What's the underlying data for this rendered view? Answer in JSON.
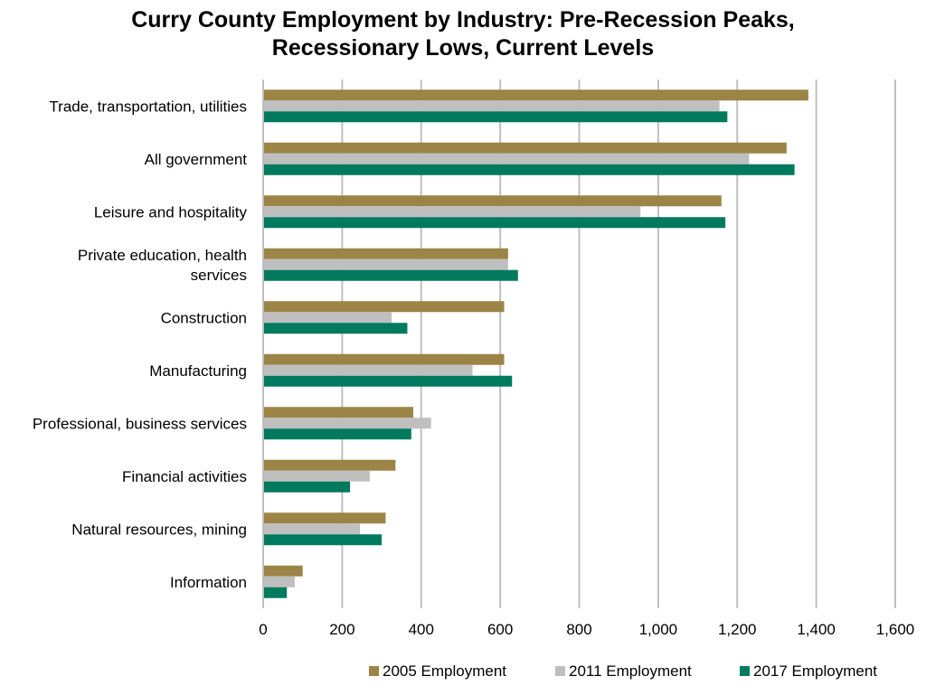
{
  "chart_data": {
    "type": "bar",
    "orientation": "horizontal",
    "title": "Curry County Employment by Industry: Pre-Recession Peaks, Recessionary Lows, Current Levels",
    "title_lines": [
      "Curry County Employment by Industry: Pre-Recession Peaks,",
      "Recessionary Lows, Current Levels"
    ],
    "categories": [
      "Trade, transportation, utilities",
      "All government",
      "Leisure and hospitality",
      "Private education, health services",
      "Construction",
      "Manufacturing",
      "Professional, business services",
      "Financial activities",
      "Natural resources, mining",
      "Information"
    ],
    "category_lines": [
      [
        "Trade, transportation, utilities"
      ],
      [
        "All government"
      ],
      [
        "Leisure and hospitality"
      ],
      [
        "Private education, health",
        "services"
      ],
      [
        "Construction"
      ],
      [
        "Manufacturing"
      ],
      [
        "Professional, business services"
      ],
      [
        "Financial activities"
      ],
      [
        "Natural resources, mining"
      ],
      [
        "Information"
      ]
    ],
    "series": [
      {
        "name": "2005 Employment",
        "color": "#9b8445",
        "values": [
          1380,
          1325,
          1160,
          620,
          610,
          610,
          380,
          335,
          310,
          100
        ]
      },
      {
        "name": "2011 Employment",
        "color": "#bfbfbf",
        "values": [
          1155,
          1230,
          955,
          620,
          325,
          530,
          425,
          270,
          245,
          80
        ]
      },
      {
        "name": "2017 Employment",
        "color": "#007a5e",
        "values": [
          1175,
          1345,
          1170,
          645,
          365,
          630,
          375,
          220,
          300,
          60
        ]
      }
    ],
    "xlim": [
      0,
      1600
    ],
    "xticks": [
      0,
      200,
      400,
      600,
      800,
      1000,
      1200,
      1400,
      1600
    ],
    "xtick_labels": [
      "0",
      "200",
      "400",
      "600",
      "800",
      "1,000",
      "1,200",
      "1,400",
      "1,600"
    ],
    "xlabel": "",
    "ylabel": "",
    "grid": "vertical",
    "legend_position": "bottom-right"
  }
}
